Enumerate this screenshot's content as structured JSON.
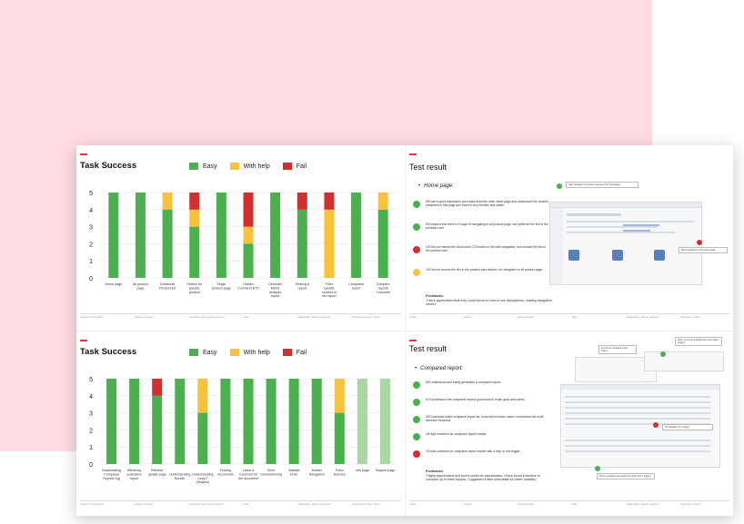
{
  "colors": {
    "easy": "#4caf50",
    "with_help": "#f7c23c",
    "fail": "#d32f2f",
    "light": "#a9d8a2",
    "bg": "#ffdde2"
  },
  "panel1": {
    "title": "Task Success",
    "legend": [
      "Easy",
      "With help",
      "Fail"
    ],
    "footer": [
      [
        "Codes",
        "30 June 2023"
      ],
      [
        "Session",
        "Analysis"
      ],
      [
        "Description title",
        "Section context"
      ],
      [
        "",
        "Data"
      ],
      [
        "Stakeholder",
        "Status",
        "Approval"
      ],
      [
        "Document",
        "Owner",
        "Notes"
      ]
    ]
  },
  "panel2": {
    "title": "Test result",
    "subtitle": "Home page:",
    "findings": [
      {
        "status": "easy",
        "text": "5/5 had a good impression and easily fixed the main home page and understood the content presented in this page and found it very intuitive and useful."
      },
      {
        "status": "easy",
        "text": "5/5 Noticed that there is 2 ways of navigating to all product page, but preferred the link in the products card."
      },
      {
        "status": "fail",
        "text": "1/5 Did not noticed the All product CTA button in the side navigation, and choose the link in the product card."
      },
      {
        "status": "with_help",
        "text": "1/5 Did not choose the link in the product card section, for navigation to all product page."
      }
    ],
    "feedback_label": "Feedbacks:",
    "feedback_text": "\"Users appreciated that they could focus on how to use descriptions, making navigation clearer\"",
    "footer": [
      [
        "Codes"
      ],
      [
        "Session"
      ],
      [
        "Description title"
      ],
      [
        "Data"
      ],
      [
        "Stakeholder",
        "Status",
        "Approval"
      ],
      [
        "Document",
        "Owner"
      ]
    ]
  },
  "panel3": {
    "title": "Task Success",
    "legend": [
      "Easy",
      "With help",
      "Fail"
    ],
    "footer": [
      [
        "Codes",
        "30 June 2023"
      ],
      [
        "Session",
        "Analysis"
      ],
      [
        "Description title",
        "Section context"
      ],
      [
        "",
        "Data"
      ],
      [
        "Stakeholder",
        "Status",
        "Approval"
      ],
      [
        "Document",
        "Owner",
        "Notes"
      ]
    ]
  },
  "panel4": {
    "title": "Test result",
    "subtitle": "Compared report:",
    "findings": [
      {
        "status": "easy",
        "text": "5/5 Understood and easily generated a compared report."
      },
      {
        "status": "easy",
        "text": "5/ 5 understood the compared reports good found it really good and useful."
      },
      {
        "status": "easy",
        "text": "5/5 Download entire compared report list, found this function useful, understood the multi selection functions."
      },
      {
        "status": "easy",
        "text": "4/5 Add comment on compared report header"
      },
      {
        "status": "fail",
        "text": "1/5 Add comment on compared report header with a help of one trigger."
      }
    ],
    "feedback_label": "Feedbacks:",
    "feedback_text": "\"Highly appreciated and found useful for visualisation. Users found it intuitive to compare up to three reports. Suggested a filter selectable for better usability.\"",
    "footer": [
      [
        "Codes"
      ],
      [
        "Session"
      ],
      [
        "Description title"
      ],
      [
        "Data"
      ],
      [
        "Stakeholder",
        "Status",
        "Approval"
      ],
      [
        "Document",
        "Owner"
      ]
    ]
  },
  "chart_data": [
    {
      "type": "bar",
      "title": "Task Success",
      "categories": [
        "Home page",
        "All product page",
        "Download Product list",
        "Search for specific product",
        "Single product page",
        "Hidden Comment ETS",
        "Generate Metric analysis report",
        "Sharing a report",
        "Filter specific content in the report",
        "Compared report",
        "Compare reports Comment"
      ],
      "series": [
        {
          "name": "Easy",
          "values": [
            5,
            5,
            4,
            3,
            5,
            2,
            5,
            4,
            0,
            5,
            4
          ]
        },
        {
          "name": "With help",
          "values": [
            0,
            0,
            1,
            1,
            0,
            1,
            0,
            0,
            4,
            0,
            1
          ]
        },
        {
          "name": "Fail",
          "values": [
            0,
            0,
            0,
            1,
            0,
            2,
            0,
            1,
            1,
            0,
            0
          ]
        }
      ],
      "ylim": [
        0,
        5
      ],
      "yticks": [
        0,
        1,
        2,
        3,
        4,
        5
      ],
      "legend": "top"
    },
    {
      "type": "bar",
      "title": "Task Success",
      "categories": [
        "Downloading Compared Reports log",
        "Efficiency evaluation report",
        "Retrieve update page",
        "Understanding Bundle",
        "Understanding Long F (Shapes)",
        "Finding documents",
        "Leave a Comment for the document",
        "Drive commissioning",
        "Validate Drive",
        "Market Navigation",
        "Extra features",
        "Info page",
        "Support page"
      ],
      "series": [
        {
          "name": "Easy",
          "values": [
            5,
            5,
            4,
            5,
            3,
            5,
            5,
            5,
            5,
            5,
            3,
            0,
            0
          ]
        },
        {
          "name": "With help",
          "values": [
            0,
            0,
            0,
            0,
            2,
            0,
            0,
            0,
            0,
            0,
            2,
            0,
            0
          ]
        },
        {
          "name": "Fail",
          "values": [
            0,
            0,
            1,
            0,
            0,
            0,
            0,
            0,
            0,
            0,
            0,
            0,
            0
          ]
        },
        {
          "values": [
            0,
            0,
            0,
            0,
            0,
            0,
            0,
            0,
            0,
            0,
            0,
            5,
            5
          ]
        }
      ],
      "ylim": [
        0,
        5
      ],
      "yticks": [
        0,
        1,
        2,
        3,
        4,
        5
      ],
      "legend": "top"
    }
  ],
  "screens": {
    "home_callouts": [
      "Next navigation to product overview of the homepage...",
      "Bond navigation to all product page..."
    ],
    "compare_callouts": [
      "Found the compared report option...",
      "Write comments complete the report with 1 triggers",
      "1/5 Navigate the 1 trigger",
      "All the conditions succeeded but report with 1 triggers"
    ]
  }
}
